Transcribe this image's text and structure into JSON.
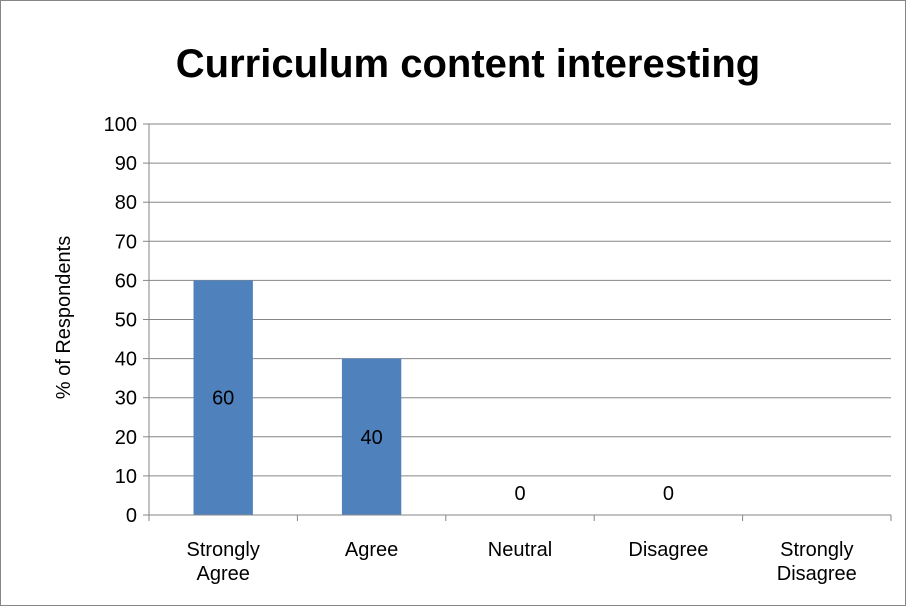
{
  "chart_data": {
    "type": "bar",
    "title": "Curriculum content interesting",
    "xlabel": "",
    "ylabel": "% of Respondents",
    "categories": [
      "Strongly Agree",
      "Agree",
      "Neutral",
      "Disagree",
      "Strongly Disagree"
    ],
    "category_lines": [
      [
        "Strongly",
        "Agree"
      ],
      [
        "Agree"
      ],
      [
        "Neutral"
      ],
      [
        "Disagree"
      ],
      [
        "Strongly",
        "Disagree"
      ]
    ],
    "values": [
      60,
      40,
      0,
      0,
      null
    ],
    "data_labels": [
      "60",
      "40",
      "0",
      "0",
      ""
    ],
    "ylim": [
      0,
      100
    ],
    "yticks": [
      0,
      10,
      20,
      30,
      40,
      50,
      60,
      70,
      80,
      90,
      100
    ],
    "grid": true,
    "legend": "none",
    "bar_color": "#4F81BD",
    "grid_color": "#868686"
  }
}
